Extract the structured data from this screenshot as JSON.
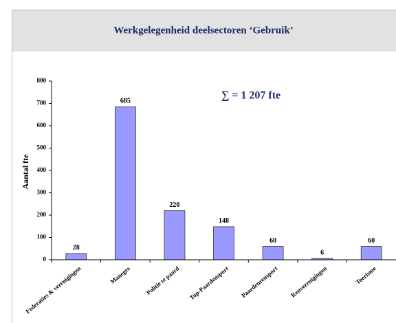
{
  "chart_data": {
    "type": "bar",
    "title": "Werkgelegenheid deelsectoren ‘Gebruik’",
    "annotation": "∑ = 1 207 fte",
    "y_label": "Aantal fte",
    "categories": [
      "Federaties & verenigingen",
      "Maneges",
      "Politie te paard",
      "Top-Paardensport",
      "Paardenrensport",
      "Renverenigingen",
      "Toerisme"
    ],
    "values": [
      28,
      685,
      220,
      148,
      60,
      6,
      60
    ],
    "color": "#9999ff",
    "ylim": [
      0,
      800
    ],
    "yticks": [
      0,
      100,
      200,
      300,
      400,
      500,
      600,
      700,
      800
    ]
  }
}
